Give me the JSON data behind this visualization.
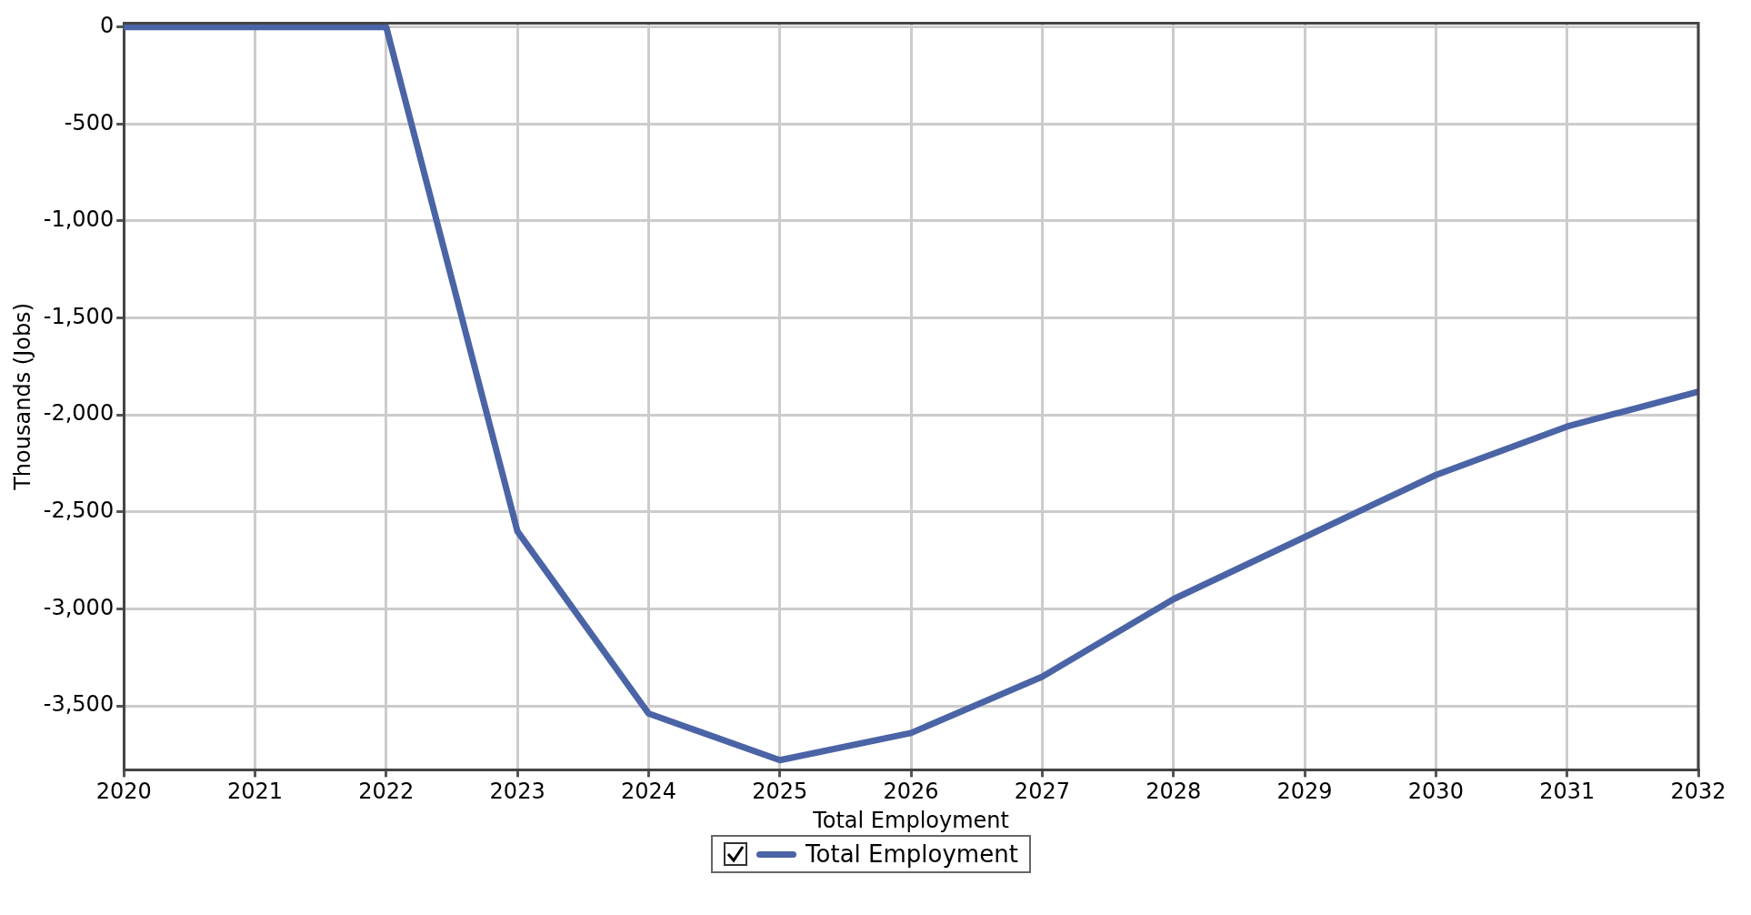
{
  "chart_data": {
    "type": "line",
    "xlabel": "Total Employment",
    "ylabel": "Thousands (Jobs)",
    "x": [
      2020,
      2021,
      2022,
      2023,
      2024,
      2025,
      2026,
      2027,
      2028,
      2029,
      2030,
      2031,
      2032
    ],
    "series": [
      {
        "name": "Total Employment",
        "color": "#4a64a6",
        "values": [
          0,
          0,
          0,
          -2600,
          -3540,
          -3780,
          -3640,
          -3350,
          -2950,
          -2630,
          -2310,
          -2060,
          -1880
        ]
      }
    ],
    "xlim": [
      2020,
      2032
    ],
    "xticks": [
      2020,
      2021,
      2022,
      2023,
      2024,
      2025,
      2026,
      2027,
      2028,
      2029,
      2030,
      2031,
      2032
    ],
    "ylim": [
      -3830,
      20
    ],
    "yticks": [
      0,
      {
        "value": -500,
        "label": "-500"
      },
      {
        "value": -1000,
        "label": "-1,000"
      },
      {
        "value": -1500,
        "label": "-1,500"
      },
      {
        "value": -2000,
        "label": "-2,000"
      },
      {
        "value": -2500,
        "label": "-2,500"
      },
      {
        "value": -3000,
        "label": "-3,000"
      },
      {
        "value": -3500,
        "label": "-3,500"
      }
    ],
    "grid": true,
    "legend": "bottom",
    "marker": "none",
    "line_style": "solid"
  }
}
